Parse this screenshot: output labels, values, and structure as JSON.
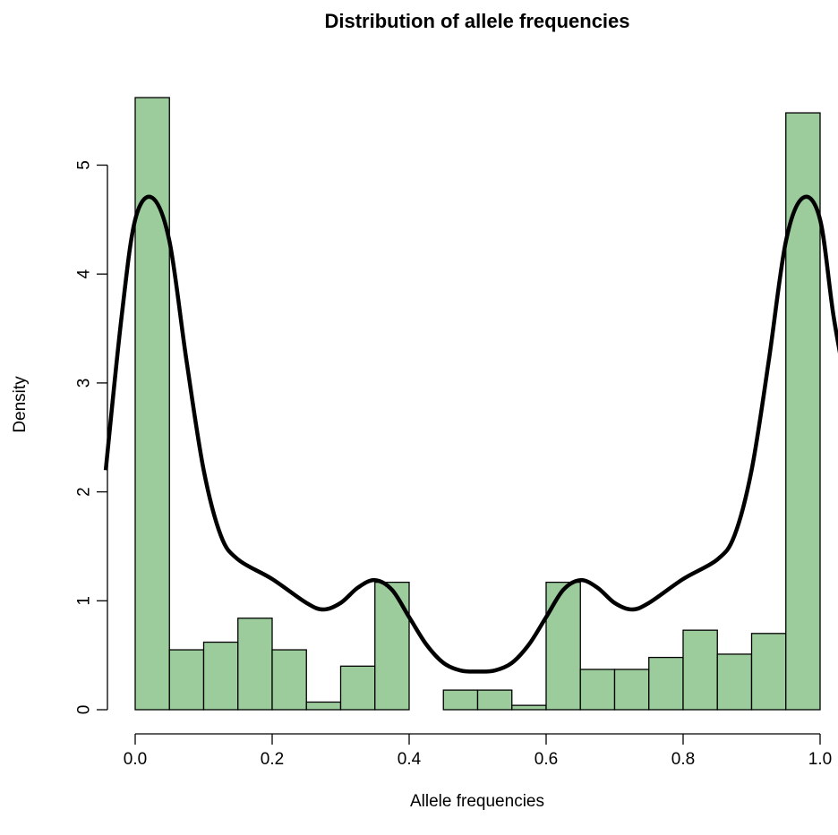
{
  "chart_data": {
    "type": "bar",
    "title": "Distribution of allele frequencies",
    "xlabel": "Allele frequencies",
    "ylabel": "Density",
    "xlim": [
      0,
      1
    ],
    "ylim": [
      0,
      5.6
    ],
    "x_ticks": [
      0.0,
      0.2,
      0.4,
      0.6,
      0.8,
      1.0
    ],
    "x_tick_labels": [
      "0.0",
      "0.2",
      "0.4",
      "0.6",
      "0.8",
      "1.0"
    ],
    "y_ticks": [
      0,
      1,
      2,
      3,
      4,
      5
    ],
    "y_tick_labels": [
      "0",
      "1",
      "2",
      "3",
      "4",
      "5"
    ],
    "bar_color": "#9ccc9c",
    "bins": [
      {
        "x0": 0.0,
        "x1": 0.05,
        "density": 5.62
      },
      {
        "x0": 0.05,
        "x1": 0.1,
        "density": 0.55
      },
      {
        "x0": 0.1,
        "x1": 0.15,
        "density": 0.62
      },
      {
        "x0": 0.15,
        "x1": 0.2,
        "density": 0.84
      },
      {
        "x0": 0.2,
        "x1": 0.25,
        "density": 0.55
      },
      {
        "x0": 0.25,
        "x1": 0.3,
        "density": 0.07
      },
      {
        "x0": 0.3,
        "x1": 0.35,
        "density": 0.4
      },
      {
        "x0": 0.35,
        "x1": 0.4,
        "density": 1.17
      },
      {
        "x0": 0.4,
        "x1": 0.45,
        "density": 0.0
      },
      {
        "x0": 0.45,
        "x1": 0.5,
        "density": 0.18
      },
      {
        "x0": 0.5,
        "x1": 0.55,
        "density": 0.18
      },
      {
        "x0": 0.55,
        "x1": 0.6,
        "density": 0.04
      },
      {
        "x0": 0.6,
        "x1": 0.65,
        "density": 1.17
      },
      {
        "x0": 0.65,
        "x1": 0.7,
        "density": 0.37
      },
      {
        "x0": 0.7,
        "x1": 0.75,
        "density": 0.37
      },
      {
        "x0": 0.75,
        "x1": 0.8,
        "density": 0.48
      },
      {
        "x0": 0.8,
        "x1": 0.85,
        "density": 0.73
      },
      {
        "x0": 0.85,
        "x1": 0.9,
        "density": 0.51
      },
      {
        "x0": 0.9,
        "x1": 0.95,
        "density": 0.7
      },
      {
        "x0": 0.95,
        "x1": 1.0,
        "density": 5.48
      }
    ],
    "density_curve": {
      "x": [
        -0.043,
        -0.02,
        0.0,
        0.025,
        0.05,
        0.075,
        0.1,
        0.125,
        0.15,
        0.2,
        0.25,
        0.275,
        0.3,
        0.325,
        0.35,
        0.375,
        0.4,
        0.425,
        0.45,
        0.475,
        0.5,
        0.525,
        0.55,
        0.575,
        0.6,
        0.625,
        0.65,
        0.675,
        0.7,
        0.725,
        0.75,
        0.8,
        0.85,
        0.875,
        0.9,
        0.925,
        0.95,
        0.975,
        1.0,
        1.02,
        1.043
      ],
      "y": [
        2.2,
        3.6,
        4.5,
        4.7,
        4.3,
        3.2,
        2.2,
        1.6,
        1.38,
        1.2,
        0.98,
        0.92,
        0.98,
        1.12,
        1.19,
        1.1,
        0.85,
        0.6,
        0.43,
        0.36,
        0.35,
        0.36,
        0.43,
        0.6,
        0.85,
        1.1,
        1.19,
        1.12,
        0.98,
        0.92,
        0.98,
        1.2,
        1.38,
        1.6,
        2.2,
        3.2,
        4.3,
        4.7,
        4.5,
        3.6,
        2.8
      ]
    }
  }
}
